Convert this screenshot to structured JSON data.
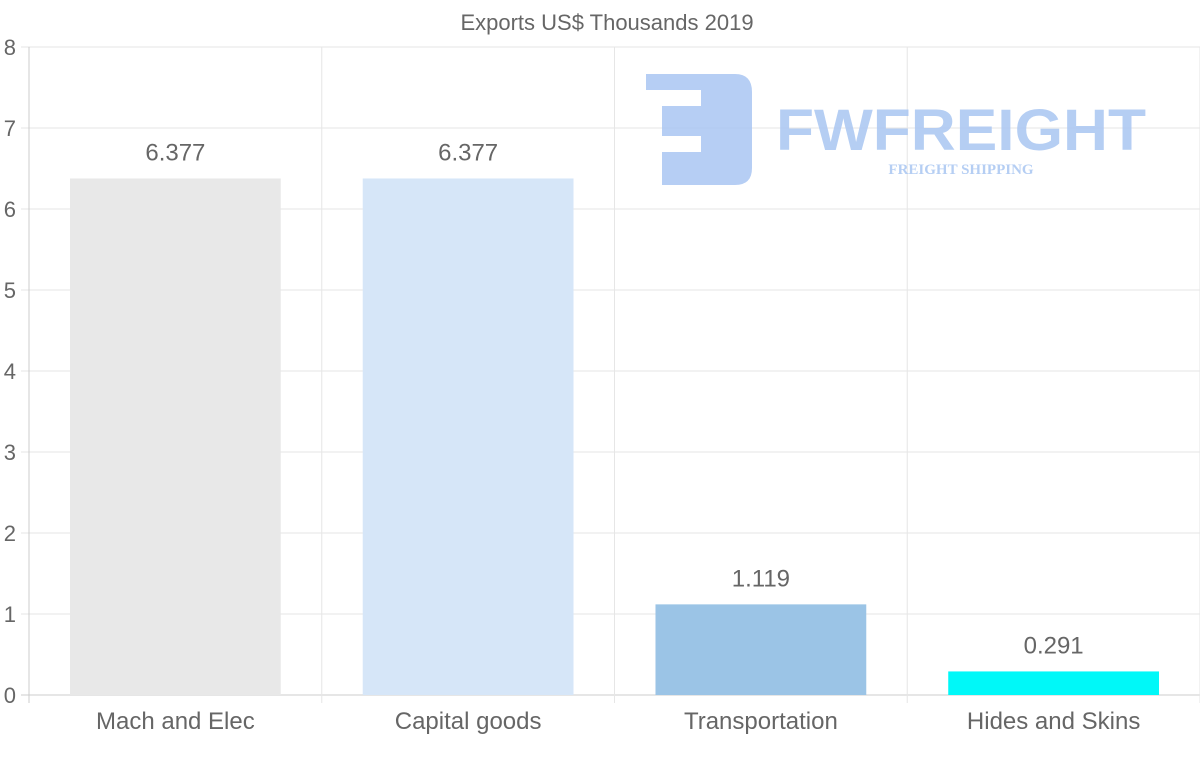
{
  "chart_data": {
    "type": "bar",
    "title": "Exports US$ Thousands 2019",
    "categories": [
      "Mach and Elec",
      "Capital goods",
      "Transportation",
      "Hides and Skins"
    ],
    "values": [
      6.377,
      6.377,
      1.119,
      0.291
    ],
    "data_labels": [
      "6.377",
      "6.377",
      "1.119",
      "0.291"
    ],
    "colors": [
      "#e8e8e8",
      "#d6e6f8",
      "#9bc4e6",
      "#00f8f8"
    ],
    "xlabel": "",
    "ylabel": "",
    "ylim": [
      0,
      8
    ],
    "yticks": [
      "0",
      "1",
      "2",
      "3",
      "4",
      "5",
      "6",
      "7",
      "8"
    ],
    "grid": true,
    "legend": "none"
  },
  "watermark": {
    "brand": "FWFREIGHT",
    "tagline": "FREIGHT SHIPPING",
    "color": "#a9c6f2"
  }
}
